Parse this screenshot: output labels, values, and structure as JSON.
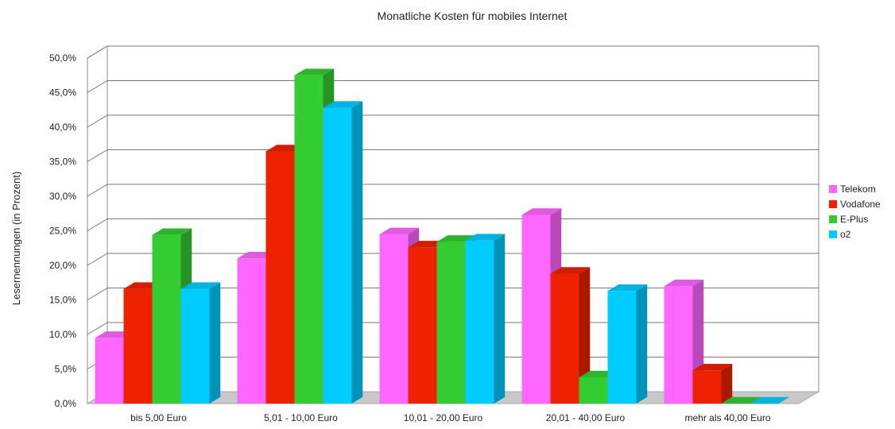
{
  "chart_data": {
    "type": "bar",
    "title": "Monatliche Kosten für mobiles Internet",
    "xlabel": "",
    "ylabel": "Lesernennungen (in Prozent)",
    "ylim": [
      0,
      50
    ],
    "yticks": [
      "0,0%",
      "5,0%",
      "10,0%",
      "15,0%",
      "20,0%",
      "25,0%",
      "30,0%",
      "35,0%",
      "40,0%",
      "45,0%",
      "50,0%"
    ],
    "categories": [
      "bis 5,00 Euro",
      "5,01 - 10,00 Euro",
      "10,01 - 20,00 Euro",
      "20,01 - 40,00 Euro",
      "mehr als 40,00 Euro"
    ],
    "series": [
      {
        "name": "Telekom",
        "color": "#ff66ff",
        "values": [
          9.5,
          21.0,
          24.5,
          27.3,
          17.0
        ]
      },
      {
        "name": "Vodafone",
        "color": "#ee2200",
        "values": [
          16.6,
          36.5,
          22.6,
          18.8,
          4.8
        ]
      },
      {
        "name": "E-Plus",
        "color": "#33cc33",
        "values": [
          24.4,
          47.5,
          23.4,
          3.8,
          0.0
        ]
      },
      {
        "name": "o2",
        "color": "#00ccff",
        "values": [
          16.6,
          42.8,
          23.6,
          16.3,
          0.0
        ]
      }
    ],
    "grid": true,
    "legend": "right",
    "style": "3d"
  }
}
